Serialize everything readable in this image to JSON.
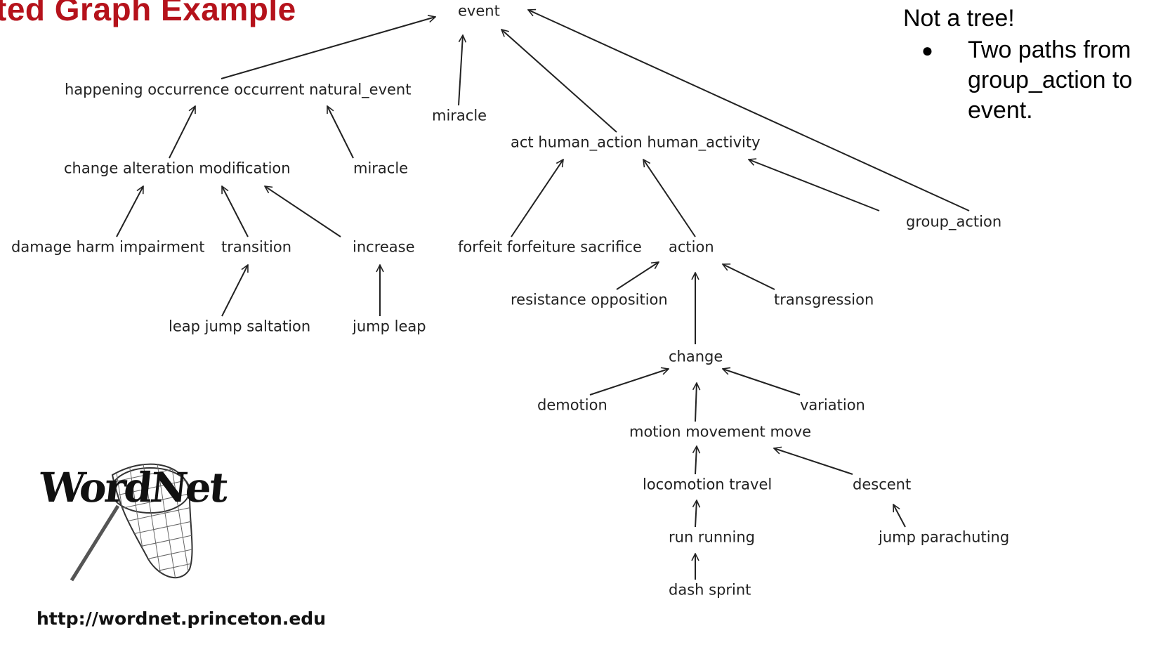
{
  "slide": {
    "title": "ted Graph Example",
    "note_heading": "Not a tree!",
    "note_bullet": "Two paths from group_action to event.",
    "url": "http://wordnet.princeton.edu",
    "logo_text": "WordNet"
  },
  "nodes": [
    {
      "id": "event",
      "label": "event"
    },
    {
      "id": "happening",
      "label": "happening occurrence occurrent natural_event"
    },
    {
      "id": "miracle_top",
      "label": "miracle"
    },
    {
      "id": "act",
      "label": "act human_action human_activity"
    },
    {
      "id": "change_alt",
      "label": "change alteration modification"
    },
    {
      "id": "miracle_mid",
      "label": "miracle"
    },
    {
      "id": "group_action",
      "label": "group_action"
    },
    {
      "id": "damage",
      "label": "damage harm impairment"
    },
    {
      "id": "transition",
      "label": "transition"
    },
    {
      "id": "increase",
      "label": "increase"
    },
    {
      "id": "forfeit",
      "label": "forfeit forfeiture sacrifice"
    },
    {
      "id": "action",
      "label": "action"
    },
    {
      "id": "resistance",
      "label": "resistance opposition"
    },
    {
      "id": "transgression",
      "label": "transgression"
    },
    {
      "id": "leap",
      "label": "leap jump saltation"
    },
    {
      "id": "jumpleap",
      "label": "jump leap"
    },
    {
      "id": "change",
      "label": "change"
    },
    {
      "id": "demotion",
      "label": "demotion"
    },
    {
      "id": "variation",
      "label": "variation"
    },
    {
      "id": "motion",
      "label": "motion movement move"
    },
    {
      "id": "locomotion",
      "label": "locomotion travel"
    },
    {
      "id": "descent",
      "label": "descent"
    },
    {
      "id": "run",
      "label": "run running"
    },
    {
      "id": "parachuting",
      "label": "jump parachuting"
    },
    {
      "id": "dash",
      "label": "dash sprint"
    }
  ],
  "edges": [
    {
      "from": "happening",
      "to": "event"
    },
    {
      "from": "miracle_top",
      "to": "event"
    },
    {
      "from": "act",
      "to": "event"
    },
    {
      "from": "group_action",
      "to": "event"
    },
    {
      "from": "change_alt",
      "to": "happening"
    },
    {
      "from": "miracle_mid",
      "to": "happening"
    },
    {
      "from": "damage",
      "to": "change_alt"
    },
    {
      "from": "transition",
      "to": "change_alt"
    },
    {
      "from": "increase",
      "to": "change_alt"
    },
    {
      "from": "leap",
      "to": "transition"
    },
    {
      "from": "jumpleap",
      "to": "increase"
    },
    {
      "from": "forfeit",
      "to": "act"
    },
    {
      "from": "action",
      "to": "act"
    },
    {
      "from": "group_action",
      "to": "act"
    },
    {
      "from": "resistance",
      "to": "action"
    },
    {
      "from": "change",
      "to": "action"
    },
    {
      "from": "transgression",
      "to": "action"
    },
    {
      "from": "demotion",
      "to": "change"
    },
    {
      "from": "motion",
      "to": "change"
    },
    {
      "from": "variation",
      "to": "change"
    },
    {
      "from": "locomotion",
      "to": "motion"
    },
    {
      "from": "descent",
      "to": "motion"
    },
    {
      "from": "run",
      "to": "locomotion"
    },
    {
      "from": "dash",
      "to": "run"
    },
    {
      "from": "parachuting",
      "to": "descent"
    }
  ]
}
